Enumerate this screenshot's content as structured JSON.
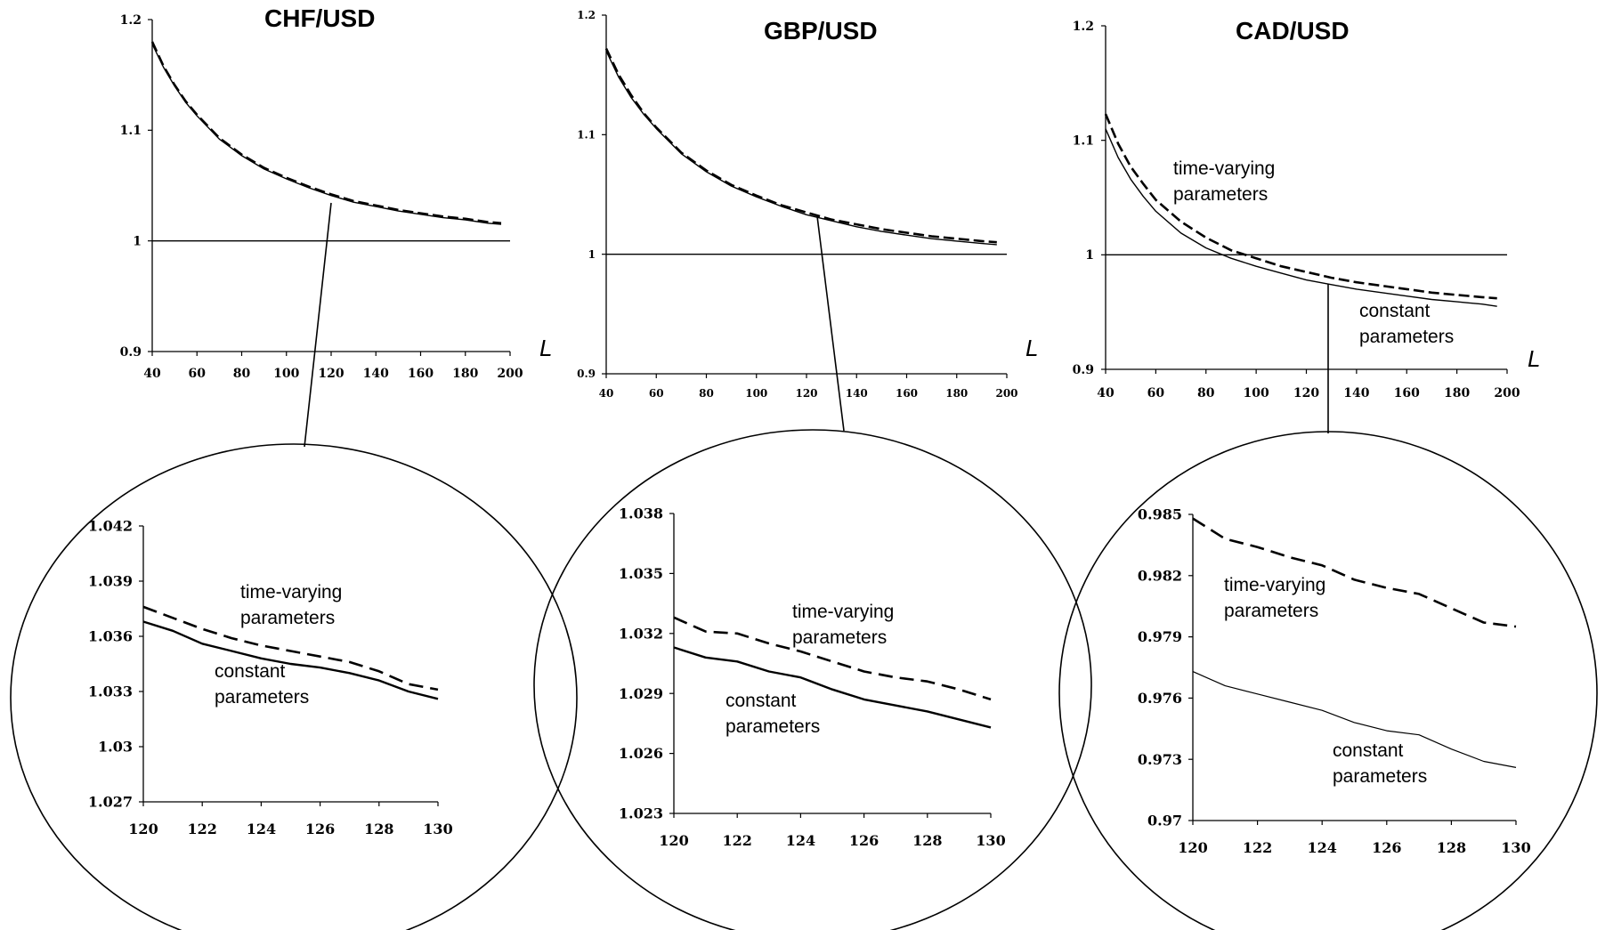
{
  "chart_data": [
    {
      "type": "line",
      "panel": "main",
      "title": "CHF/USD",
      "xlabel": "L",
      "ylabel": "",
      "x_ticks": [
        40,
        60,
        80,
        100,
        120,
        140,
        160,
        180,
        200
      ],
      "y_ticks": [
        0.9,
        1,
        1.1,
        1.2
      ],
      "y_tick_labels": [
        "0.9",
        "1",
        "1.1",
        "1.2"
      ],
      "xlim": [
        40,
        200
      ],
      "ylim": [
        0.9,
        1.2
      ],
      "reference_line": 1,
      "series": [
        {
          "style": "dashed",
          "x": [
            40,
            45,
            50,
            55,
            60,
            70,
            80,
            90,
            100,
            110,
            120,
            130,
            140,
            150,
            160,
            170,
            180,
            190,
            196
          ],
          "y": [
            1.18,
            1.158,
            1.141,
            1.126,
            1.114,
            1.093,
            1.078,
            1.066,
            1.057,
            1.049,
            1.042,
            1.036,
            1.032,
            1.028,
            1.025,
            1.022,
            1.02,
            1.017,
            1.016
          ]
        },
        {
          "style": "solid",
          "x": [
            40,
            45,
            50,
            55,
            60,
            70,
            80,
            90,
            100,
            110,
            120,
            130,
            140,
            150,
            160,
            170,
            180,
            190,
            196
          ],
          "y": [
            1.178,
            1.157,
            1.14,
            1.125,
            1.113,
            1.092,
            1.077,
            1.065,
            1.056,
            1.048,
            1.041,
            1.035,
            1.031,
            1.027,
            1.024,
            1.021,
            1.019,
            1.016,
            1.015
          ]
        }
      ]
    },
    {
      "type": "line",
      "panel": "main",
      "title": "GBP/USD",
      "xlabel": "L",
      "ylabel": "",
      "x_ticks": [
        40,
        60,
        80,
        100,
        120,
        140,
        160,
        180,
        200
      ],
      "y_ticks": [
        0.9,
        1,
        1.1,
        1.2
      ],
      "y_tick_labels": [
        "0.9",
        "1",
        "1.1",
        "1.2"
      ],
      "xlim": [
        40,
        200
      ],
      "ylim": [
        0.9,
        1.2
      ],
      "reference_line": 1,
      "series": [
        {
          "style": "dashed",
          "x": [
            40,
            45,
            50,
            55,
            60,
            70,
            80,
            90,
            100,
            110,
            120,
            130,
            140,
            150,
            160,
            170,
            180,
            190,
            196
          ],
          "y": [
            1.172,
            1.15,
            1.133,
            1.118,
            1.106,
            1.085,
            1.07,
            1.058,
            1.049,
            1.041,
            1.035,
            1.029,
            1.025,
            1.021,
            1.018,
            1.015,
            1.013,
            1.011,
            1.01
          ]
        },
        {
          "style": "solid",
          "x": [
            40,
            45,
            50,
            55,
            60,
            70,
            80,
            90,
            100,
            110,
            120,
            130,
            140,
            150,
            160,
            170,
            180,
            190,
            196
          ],
          "y": [
            1.17,
            1.148,
            1.131,
            1.117,
            1.105,
            1.084,
            1.069,
            1.057,
            1.048,
            1.04,
            1.033,
            1.028,
            1.023,
            1.019,
            1.016,
            1.013,
            1.011,
            1.009,
            1.008
          ]
        }
      ]
    },
    {
      "type": "line",
      "panel": "main",
      "title": "CAD/USD",
      "xlabel": "L",
      "ylabel": "",
      "x_ticks": [
        40,
        60,
        80,
        100,
        120,
        140,
        160,
        180,
        200
      ],
      "y_ticks": [
        0.9,
        1,
        1.1,
        1.2
      ],
      "y_tick_labels": [
        "0.9",
        "1",
        "1.1",
        "1.2"
      ],
      "xlim": [
        40,
        200
      ],
      "ylim": [
        0.9,
        1.2
      ],
      "reference_line": 1,
      "annotations": [
        {
          "text": [
            "time-varying",
            "parameters"
          ],
          "near": "upper-left"
        },
        {
          "text": [
            "constant",
            "parameters"
          ],
          "near": "lower-right"
        }
      ],
      "series": [
        {
          "name": "time-varying parameters",
          "style": "dashed",
          "x": [
            40,
            45,
            50,
            55,
            60,
            70,
            80,
            90,
            100,
            110,
            120,
            130,
            140,
            150,
            160,
            170,
            180,
            190,
            196
          ],
          "y": [
            1.123,
            1.097,
            1.077,
            1.062,
            1.048,
            1.029,
            1.015,
            1.004,
            0.997,
            0.99,
            0.985,
            0.98,
            0.976,
            0.973,
            0.97,
            0.967,
            0.965,
            0.963,
            0.962
          ]
        },
        {
          "name": "constant parameters",
          "style": "solid",
          "x": [
            40,
            45,
            50,
            55,
            60,
            70,
            80,
            90,
            100,
            110,
            120,
            130,
            140,
            150,
            160,
            170,
            180,
            190,
            196
          ],
          "y": [
            1.11,
            1.085,
            1.066,
            1.051,
            1.038,
            1.019,
            1.006,
            0.997,
            0.99,
            0.984,
            0.978,
            0.974,
            0.97,
            0.967,
            0.964,
            0.961,
            0.959,
            0.957,
            0.955
          ]
        }
      ]
    },
    {
      "type": "line",
      "panel": "zoom",
      "xlabel": "",
      "ylabel": "",
      "x_ticks": [
        120,
        122,
        124,
        126,
        128,
        130
      ],
      "y_ticks": [
        1.027,
        1.03,
        1.033,
        1.036,
        1.039,
        1.042
      ],
      "y_tick_labels": [
        "1.027",
        "1.03",
        "1.033",
        "1.036",
        "1.039",
        "1.042"
      ],
      "xlim": [
        120,
        130
      ],
      "ylim": [
        1.027,
        1.042
      ],
      "annotations": [
        {
          "text": [
            "time-varying",
            "parameters"
          ],
          "near": "upper"
        },
        {
          "text": [
            "constant",
            "parameters"
          ],
          "near": "lower"
        }
      ],
      "series": [
        {
          "name": "time-varying parameters",
          "style": "dashed",
          "x": [
            120,
            121,
            122,
            123,
            124,
            125,
            126,
            127,
            128,
            129,
            130
          ],
          "y": [
            1.0376,
            1.037,
            1.0364,
            1.0359,
            1.0355,
            1.0352,
            1.0349,
            1.0346,
            1.0341,
            1.0334,
            1.0331
          ]
        },
        {
          "name": "constant parameters",
          "style": "solid",
          "x": [
            120,
            121,
            122,
            123,
            124,
            125,
            126,
            127,
            128,
            129,
            130
          ],
          "y": [
            1.0368,
            1.0363,
            1.0356,
            1.0352,
            1.0348,
            1.0345,
            1.0343,
            1.034,
            1.0336,
            1.033,
            1.0326
          ]
        }
      ]
    },
    {
      "type": "line",
      "panel": "zoom",
      "xlabel": "",
      "ylabel": "",
      "x_ticks": [
        120,
        122,
        124,
        126,
        128,
        130
      ],
      "y_ticks": [
        1.023,
        1.026,
        1.029,
        1.032,
        1.035,
        1.038
      ],
      "y_tick_labels": [
        "1.023",
        "1.026",
        "1.029",
        "1.032",
        "1.035",
        "1.038"
      ],
      "xlim": [
        120,
        130
      ],
      "ylim": [
        1.023,
        1.038
      ],
      "annotations": [
        {
          "text": [
            "time-varying",
            "parameters"
          ],
          "near": "upper"
        },
        {
          "text": [
            "constant",
            "parameters"
          ],
          "near": "lower"
        }
      ],
      "series": [
        {
          "name": "time-varying parameters",
          "style": "dashed",
          "x": [
            120,
            121,
            122,
            123,
            124,
            125,
            126,
            127,
            128,
            129,
            130
          ],
          "y": [
            1.0328,
            1.0321,
            1.032,
            1.0315,
            1.0311,
            1.0306,
            1.0301,
            1.0298,
            1.0296,
            1.0292,
            1.0287
          ]
        },
        {
          "name": "constant parameters",
          "style": "solid",
          "x": [
            120,
            121,
            122,
            123,
            124,
            125,
            126,
            127,
            128,
            129,
            130
          ],
          "y": [
            1.0313,
            1.0308,
            1.0306,
            1.0301,
            1.0298,
            1.0292,
            1.0287,
            1.0284,
            1.0281,
            1.0277,
            1.0273
          ]
        }
      ]
    },
    {
      "type": "line",
      "panel": "zoom",
      "xlabel": "",
      "ylabel": "",
      "x_ticks": [
        120,
        122,
        124,
        126,
        128,
        130
      ],
      "y_ticks": [
        0.97,
        0.973,
        0.976,
        0.979,
        0.982,
        0.985
      ],
      "y_tick_labels": [
        "0.97",
        "0.973",
        "0.976",
        "0.979",
        "0.982",
        "0.985"
      ],
      "xlim": [
        120,
        130
      ],
      "ylim": [
        0.97,
        0.985
      ],
      "annotations": [
        {
          "text": [
            "time-varying",
            "parameters"
          ],
          "near": "upper"
        },
        {
          "text": [
            "constant",
            "parameters"
          ],
          "near": "lower"
        }
      ],
      "series": [
        {
          "name": "time-varying parameters",
          "style": "dashed",
          "x": [
            120,
            121,
            122,
            123,
            124,
            125,
            126,
            127,
            128,
            129,
            130
          ],
          "y": [
            0.9848,
            0.9838,
            0.9834,
            0.9829,
            0.9825,
            0.9818,
            0.9814,
            0.9811,
            0.9804,
            0.9797,
            0.9795
          ]
        },
        {
          "name": "constant parameters",
          "style": "solid",
          "x": [
            120,
            121,
            122,
            123,
            124,
            125,
            126,
            127,
            128,
            129,
            130
          ],
          "y": [
            0.9773,
            0.9766,
            0.9762,
            0.9758,
            0.9754,
            0.9748,
            0.9744,
            0.9742,
            0.9735,
            0.9729,
            0.9726
          ]
        }
      ]
    }
  ]
}
